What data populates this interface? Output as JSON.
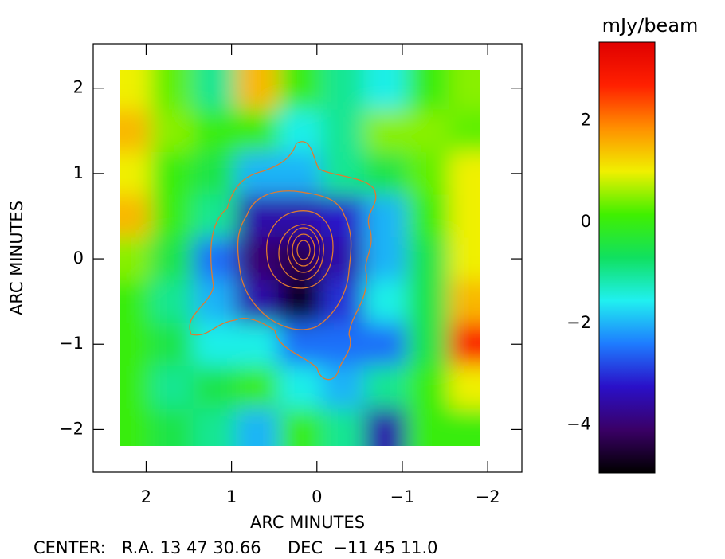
{
  "chart_data": {
    "type": "heatmap",
    "xlabel": "ARC MINUTES",
    "ylabel": "ARC MINUTES",
    "footer": "CENTER:   R.A. 13 47 30.66     DEC  −11 45 11.0",
    "colorbar_label": "mJy/beam",
    "xlim": [
      2.62,
      -2.4
    ],
    "ylim": [
      -2.5,
      2.52
    ],
    "xticks": [
      2,
      1,
      0,
      {
        "value": -1,
        "label": "−1"
      },
      {
        "value": -2,
        "label": "−2"
      }
    ],
    "yticks": [
      {
        "value": -2,
        "label": "−2"
      },
      {
        "value": -1,
        "label": "−1"
      },
      0,
      1,
      2
    ],
    "clim": [
      -4.95,
      3.55
    ],
    "cticks": [
      {
        "value": -4,
        "label": "−4"
      },
      {
        "value": -2,
        "label": "−2"
      },
      0,
      2
    ],
    "colorscale": [
      "#000000",
      "#3a0066",
      "#2a10c8",
      "#1e7cff",
      "#20f0f0",
      "#10e060",
      "#40f000",
      "#f0f000",
      "#ff9000",
      "#ff2000",
      "#e00000"
    ],
    "x": [
      2.2,
      1.7,
      1.2,
      0.7,
      0.2,
      -0.3,
      -0.8,
      -1.3,
      -1.8
    ],
    "y": [
      2.0,
      1.5,
      1.0,
      0.5,
      0,
      -0.5,
      -1.0,
      -1.5,
      -2.0
    ],
    "z": [
      [
        1,
        0.3,
        -1,
        1.5,
        0,
        -1,
        -1.5,
        0,
        0.5
      ],
      [
        1.5,
        0.5,
        0,
        0,
        -1.5,
        -1,
        0.5,
        0.5,
        0.3
      ],
      [
        1,
        0,
        -0.5,
        -2,
        -2,
        -1,
        -0.5,
        0.3,
        1
      ],
      [
        1.5,
        0,
        -1,
        -3.5,
        -3.5,
        -3.2,
        -2,
        0,
        1
      ],
      [
        0.5,
        -0.5,
        -2.5,
        -4,
        -4.3,
        -3.5,
        -2,
        -0.5,
        1
      ],
      [
        0,
        -1,
        -2,
        -3.5,
        -4.8,
        -3,
        -1.5,
        -0.5,
        1.5
      ],
      [
        0,
        -0.5,
        -1.5,
        -1.5,
        -2.5,
        -2.5,
        -2.5,
        -0.5,
        2.8
      ],
      [
        0,
        -1,
        -0.5,
        0,
        -1.5,
        -2,
        -1,
        0,
        1
      ],
      [
        0,
        -0.5,
        -1,
        -2,
        0,
        -1,
        -3.5,
        0,
        0
      ]
    ]
  }
}
